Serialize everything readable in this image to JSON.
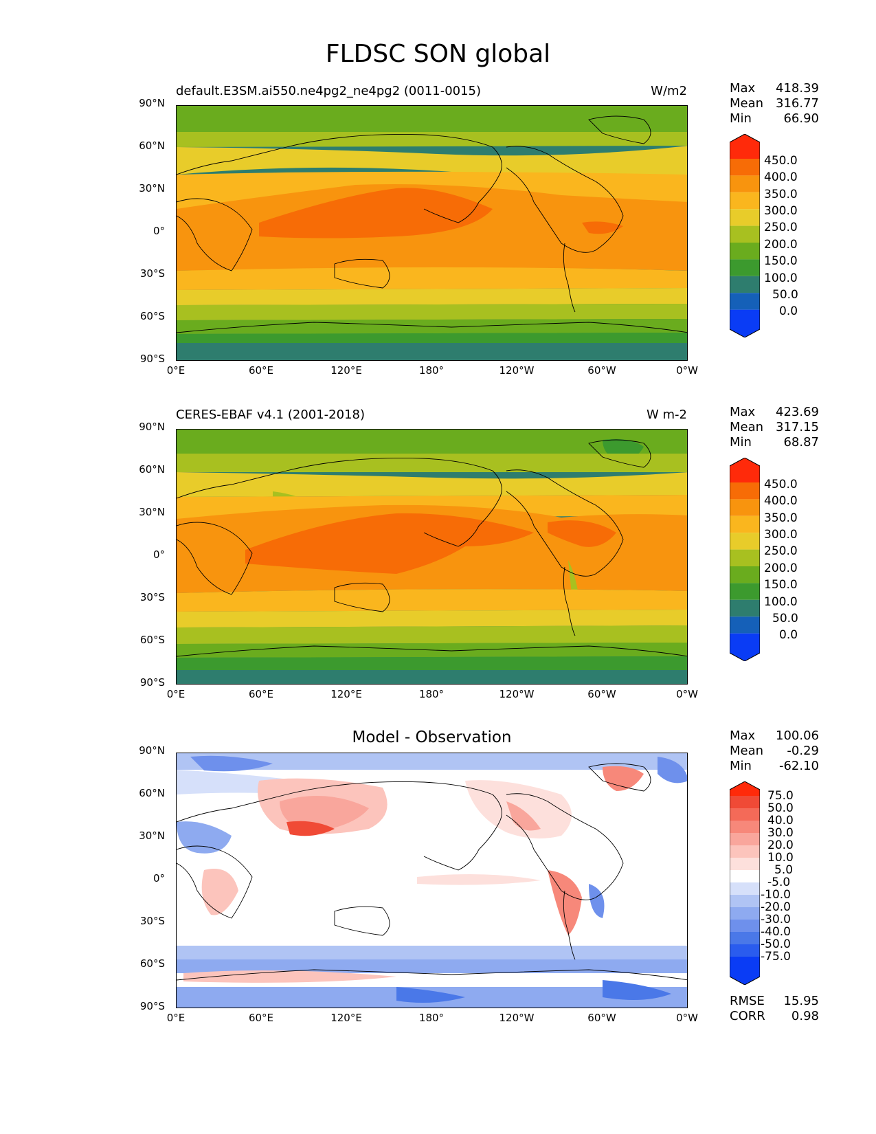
{
  "title": "FLDSC SON global",
  "axis_ticks": {
    "lat": [
      "90°N",
      "60°N",
      "30°N",
      "0°",
      "30°S",
      "60°S",
      "90°S"
    ],
    "lon": [
      "0°E",
      "60°E",
      "120°E",
      "180°",
      "120°W",
      "60°W",
      "0°W"
    ]
  },
  "panels": [
    {
      "left_title": "default.E3SM.ai550.ne4pg2_ne4pg2 (0011-0015)",
      "units": "W/m2",
      "center_title": "",
      "stats": {
        "max_label": "Max",
        "max": "418.39",
        "mean_label": "Mean",
        "mean": "316.77",
        "min_label": "Min",
        "min": "66.90"
      },
      "colorbar_labels": [
        "450.0",
        "400.0",
        "350.0",
        "300.0",
        "250.0",
        "200.0",
        "150.0",
        "100.0",
        "50.0",
        "0.0"
      ]
    },
    {
      "left_title": "CERES-EBAF v4.1 (2001-2018)",
      "units": "W m-2",
      "center_title": "",
      "stats": {
        "max_label": "Max",
        "max": "423.69",
        "mean_label": "Mean",
        "mean": "317.15",
        "min_label": "Min",
        "min": "68.87"
      },
      "colorbar_labels": [
        "450.0",
        "400.0",
        "350.0",
        "300.0",
        "250.0",
        "200.0",
        "150.0",
        "100.0",
        "50.0",
        "0.0"
      ]
    },
    {
      "left_title": "",
      "units": "",
      "center_title": "Model - Observation",
      "stats": {
        "max_label": "Max",
        "max": "100.06",
        "mean_label": "Mean",
        "mean": "-0.29",
        "min_label": "Min",
        "min": "-62.10"
      },
      "colorbar_labels": [
        "75.0",
        "50.0",
        "40.0",
        "30.0",
        "20.0",
        "10.0",
        "5.0",
        "-5.0",
        "-10.0",
        "-20.0",
        "-30.0",
        "-40.0",
        "-50.0",
        "-75.0"
      ],
      "rmse_label": "RMSE",
      "rmse": "15.95",
      "corr_label": "CORR",
      "corr": "0.98"
    }
  ],
  "colors": {
    "seq": [
      "#0a3cf5",
      "#1560b8",
      "#2e7d6e",
      "#3c9a2e",
      "#6aac1e",
      "#a8c020",
      "#e8cc2a",
      "#fab61e",
      "#f8940e",
      "#f76c06",
      "#ff2a0a"
    ],
    "div": [
      "#0a3cf5",
      "#2a5cee",
      "#4a78e8",
      "#6e90ec",
      "#8eaaf0",
      "#b0c4f4",
      "#d6e0fa",
      "#ffffff",
      "#fde0dc",
      "#fcc4bc",
      "#f9a69c",
      "#f7887a",
      "#f46a58",
      "#f04a36",
      "#ff2a0a"
    ]
  },
  "chart_data": [
    {
      "type": "heatmap",
      "title": "default.E3SM.ai550.ne4pg2_ne4pg2 (0011-0015)",
      "variable": "FLDSC",
      "season": "SON",
      "units": "W/m2",
      "x_range": [
        0,
        360
      ],
      "y_range": [
        -90,
        90
      ],
      "levels": [
        0,
        50,
        100,
        150,
        200,
        250,
        300,
        350,
        400,
        450
      ],
      "summary": {
        "max": 418.39,
        "mean": 316.77,
        "min": 66.9
      },
      "zonal_bands": [
        {
          "lat": [
            60,
            90
          ],
          "level": 150
        },
        {
          "lat": [
            40,
            60
          ],
          "level": 200
        },
        {
          "lat": [
            25,
            40
          ],
          "level": 300
        },
        {
          "lat": [
            -20,
            25
          ],
          "level": 350
        },
        {
          "lat": [
            -35,
            -20
          ],
          "level": 300
        },
        {
          "lat": [
            -55,
            -35
          ],
          "level": 250
        },
        {
          "lat": [
            -70,
            -55
          ],
          "level": 150
        },
        {
          "lat": [
            -90,
            -70
          ],
          "level": 50
        }
      ]
    },
    {
      "type": "heatmap",
      "title": "CERES-EBAF v4.1 (2001-2018)",
      "variable": "FLDSC",
      "season": "SON",
      "units": "W m-2",
      "x_range": [
        0,
        360
      ],
      "y_range": [
        -90,
        90
      ],
      "levels": [
        0,
        50,
        100,
        150,
        200,
        250,
        300,
        350,
        400,
        450
      ],
      "summary": {
        "max": 423.69,
        "mean": 317.15,
        "min": 68.87
      }
    },
    {
      "type": "heatmap",
      "title": "Model - Observation",
      "x_range": [
        0,
        360
      ],
      "y_range": [
        -90,
        90
      ],
      "levels": [
        -75,
        -50,
        -40,
        -30,
        -20,
        -10,
        -5,
        5,
        10,
        20,
        30,
        40,
        50,
        75
      ],
      "summary": {
        "max": 100.06,
        "mean": -0.29,
        "min": -62.1,
        "rmse": 15.95,
        "corr": 0.98
      }
    }
  ]
}
